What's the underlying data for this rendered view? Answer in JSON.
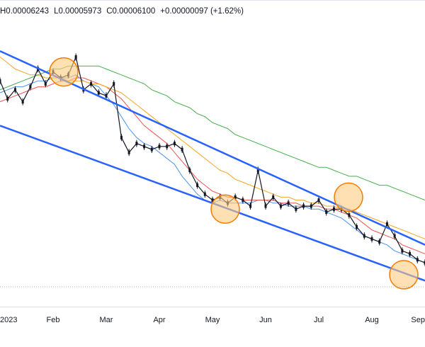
{
  "ohlc": {
    "high": "H0.00006243",
    "low": "L0.00005973",
    "close": "C0.00006100",
    "change": "+0.00000097 (+1.62%)"
  },
  "colors": {
    "candle": "#131722",
    "trend_channel": "#2962ff",
    "ma_blue": "#4f93e8",
    "ma_red": "#ef5350",
    "ma_orange": "#f5a623",
    "ma_green": "#4caf50",
    "highlight_fill": "#ffcc80",
    "highlight_stroke": "#f57c00"
  },
  "chart_data": {
    "type": "line",
    "title": "",
    "x_ticks": [
      "2023",
      "Feb",
      "Mar",
      "Apr",
      "May",
      "Jun",
      "Jul",
      "Aug",
      "Sep"
    ],
    "series": [
      {
        "values": [
          6.2e-05,
          6.14e-05,
          6.17e-05,
          6.13e-05,
          6.18e-05,
          6.24e-05,
          6.19e-05,
          6.23e-05,
          6.21e-05,
          6.22e-05,
          6.28e-05,
          6.17e-05,
          6.19e-05,
          6.16e-05,
          6.15e-05,
          6.19e-05,
          6.01e-05,
          5.96e-05,
          5.99e-05,
          5.98e-05,
          5.97e-05,
          5.98e-05,
          5.98e-05,
          5.99e-05,
          5.97e-05,
          5.9e-05,
          5.85e-05,
          5.82e-05,
          5.8e-05,
          5.81e-05,
          5.79e-05,
          5.81e-05,
          5.8e-05,
          5.78e-05,
          5.9e-05,
          5.78e-05,
          5.81e-05,
          5.78e-05,
          5.79e-05,
          5.77e-05,
          5.78e-05,
          5.78e-05,
          5.8e-05,
          5.76e-05,
          5.77e-05,
          5.77e-05,
          5.75e-05,
          5.71e-05,
          5.68e-05,
          5.67e-05,
          5.66e-05,
          5.72e-05,
          5.68e-05,
          5.63e-05,
          5.62e-05,
          5.6e-05,
          5.59e-05
        ]
      }
    ],
    "moving_averages": [
      {
        "values": [
          6.16e-05,
          6.17e-05,
          6.18e-05,
          6.18e-05,
          6.19e-05,
          6.2e-05,
          6.2e-05,
          6.21e-05,
          6.21e-05,
          6.21e-05,
          6.22e-05,
          6.2e-05,
          6.19e-05,
          6.18e-05,
          6.15e-05,
          6.12e-05,
          6.08e-05,
          6.04e-05,
          6.01e-05,
          5.99e-05,
          5.98e-05,
          5.96e-05,
          5.94e-05,
          5.92e-05,
          5.88e-05,
          5.85e-05,
          5.82e-05,
          5.8e-05,
          5.79e-05,
          5.8e-05,
          5.79e-05,
          5.79e-05,
          5.79e-05,
          5.79e-05,
          5.8e-05,
          5.8e-05,
          5.79e-05,
          5.79e-05,
          5.78e-05,
          5.78e-05,
          5.78e-05,
          5.77e-05,
          5.77e-05,
          5.76e-05,
          5.75e-05,
          5.74e-05,
          5.72e-05,
          5.7e-05,
          5.68e-05,
          5.67e-05,
          5.66e-05,
          5.65e-05,
          5.63e-05,
          5.62e-05,
          5.61e-05,
          5.6e-05,
          5.59e-05
        ]
      },
      {
        "values": [
          6.13e-05,
          6.14e-05,
          6.15e-05,
          6.16e-05,
          6.17e-05,
          6.18e-05,
          6.18e-05,
          6.19e-05,
          6.2e-05,
          6.2e-05,
          6.21e-05,
          6.21e-05,
          6.2e-05,
          6.19e-05,
          6.18e-05,
          6.16e-05,
          6.14e-05,
          6.11e-05,
          6.08e-05,
          6.05e-05,
          6.03e-05,
          6.01e-05,
          5.99e-05,
          5.96e-05,
          5.93e-05,
          5.9e-05,
          5.87e-05,
          5.85e-05,
          5.83e-05,
          5.82e-05,
          5.81e-05,
          5.81e-05,
          5.8e-05,
          5.8e-05,
          5.8e-05,
          5.8e-05,
          5.8e-05,
          5.79e-05,
          5.79e-05,
          5.79e-05,
          5.78e-05,
          5.78e-05,
          5.78e-05,
          5.77e-05,
          5.77e-05,
          5.76e-05,
          5.75e-05,
          5.74e-05,
          5.72e-05,
          5.7e-05,
          5.69e-05,
          5.68e-05,
          5.67e-05,
          5.65e-05,
          5.64e-05,
          5.63e-05,
          5.62e-05
        ]
      },
      {
        "values": [
          6.28e-05,
          6.26e-05,
          6.24e-05,
          6.23e-05,
          6.22e-05,
          6.22e-05,
          6.21e-05,
          6.21e-05,
          6.21e-05,
          6.2e-05,
          6.2e-05,
          6.2e-05,
          6.19e-05,
          6.19e-05,
          6.18e-05,
          6.17e-05,
          6.16e-05,
          6.14e-05,
          6.12e-05,
          6.1e-05,
          6.08e-05,
          6.06e-05,
          6.04e-05,
          6.02e-05,
          6e-05,
          5.98e-05,
          5.96e-05,
          5.94e-05,
          5.92e-05,
          5.9e-05,
          5.89e-05,
          5.87e-05,
          5.86e-05,
          5.85e-05,
          5.84e-05,
          5.83e-05,
          5.82e-05,
          5.81e-05,
          5.81e-05,
          5.8e-05,
          5.8e-05,
          5.79e-05,
          5.79e-05,
          5.78e-05,
          5.78e-05,
          5.77e-05,
          5.77e-05,
          5.76e-05,
          5.75e-05,
          5.74e-05,
          5.73e-05,
          5.72e-05,
          5.71e-05,
          5.7e-05,
          5.69e-05,
          5.68e-05,
          5.67e-05
        ]
      },
      {
        "values": [
          6.17e-05,
          6.18e-05,
          6.19e-05,
          6.2e-05,
          6.21e-05,
          6.22e-05,
          6.23e-05,
          6.24e-05,
          6.24e-05,
          6.25e-05,
          6.25e-05,
          6.25e-05,
          6.25e-05,
          6.25e-05,
          6.24e-05,
          6.23e-05,
          6.22e-05,
          6.21e-05,
          6.2e-05,
          6.19e-05,
          6.17e-05,
          6.16e-05,
          6.15e-05,
          6.13e-05,
          6.12e-05,
          6.11e-05,
          6.09e-05,
          6.08e-05,
          6.06e-05,
          6.05e-05,
          6.04e-05,
          6.02e-05,
          6.01e-05,
          6e-05,
          5.99e-05,
          5.98e-05,
          5.97e-05,
          5.96e-05,
          5.95e-05,
          5.94e-05,
          5.93e-05,
          5.92e-05,
          5.91e-05,
          5.91e-05,
          5.9e-05,
          5.89e-05,
          5.88e-05,
          5.88e-05,
          5.87e-05,
          5.86e-05,
          5.85e-05,
          5.85e-05,
          5.84e-05,
          5.83e-05,
          5.82e-05,
          5.81e-05,
          5.8e-05
        ]
      }
    ],
    "channel_upper": [
      [
        0.0,
        6.3e-05
      ],
      [
        1.0,
        5.65e-05
      ]
    ],
    "channel_lower": [
      [
        0.0,
        6.05e-05
      ],
      [
        1.0,
        5.53e-05
      ]
    ],
    "highlights": [
      {
        "x": 0.15,
        "y": 6.23e-05
      },
      {
        "x": 0.53,
        "y": 5.77e-05
      },
      {
        "x": 0.82,
        "y": 5.81e-05
      },
      {
        "x": 0.95,
        "y": 5.55e-05
      }
    ],
    "ylim": [
      5.45e-05,
      6.4e-05
    ],
    "grid": false
  }
}
